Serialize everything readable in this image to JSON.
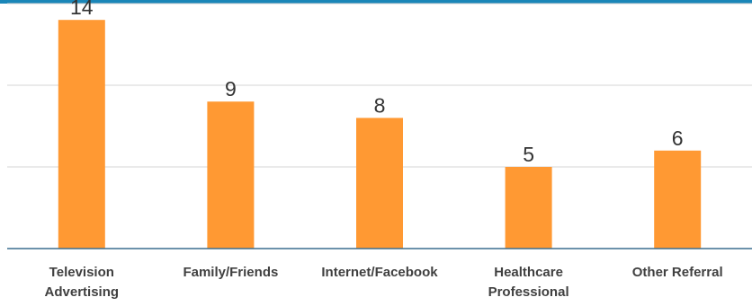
{
  "chart_data": {
    "type": "bar",
    "categories": [
      [
        "Television",
        "Advertising"
      ],
      [
        "Family/Friends"
      ],
      [
        "Internet/Facebook"
      ],
      [
        "Healthcare",
        "Professional"
      ],
      [
        "Other Referral"
      ]
    ],
    "values": [
      14,
      9,
      8,
      5,
      6
    ],
    "data_labels": [
      "14",
      "9",
      "8",
      "5",
      "6"
    ],
    "ylim": [
      0,
      15
    ],
    "grid": true,
    "legend": "none",
    "colors": {
      "bar": "#FF9933",
      "top_border": "#1A86B8",
      "axis": "#3B6E8F",
      "grid": "#D4D4D4",
      "label": "#404040"
    }
  }
}
